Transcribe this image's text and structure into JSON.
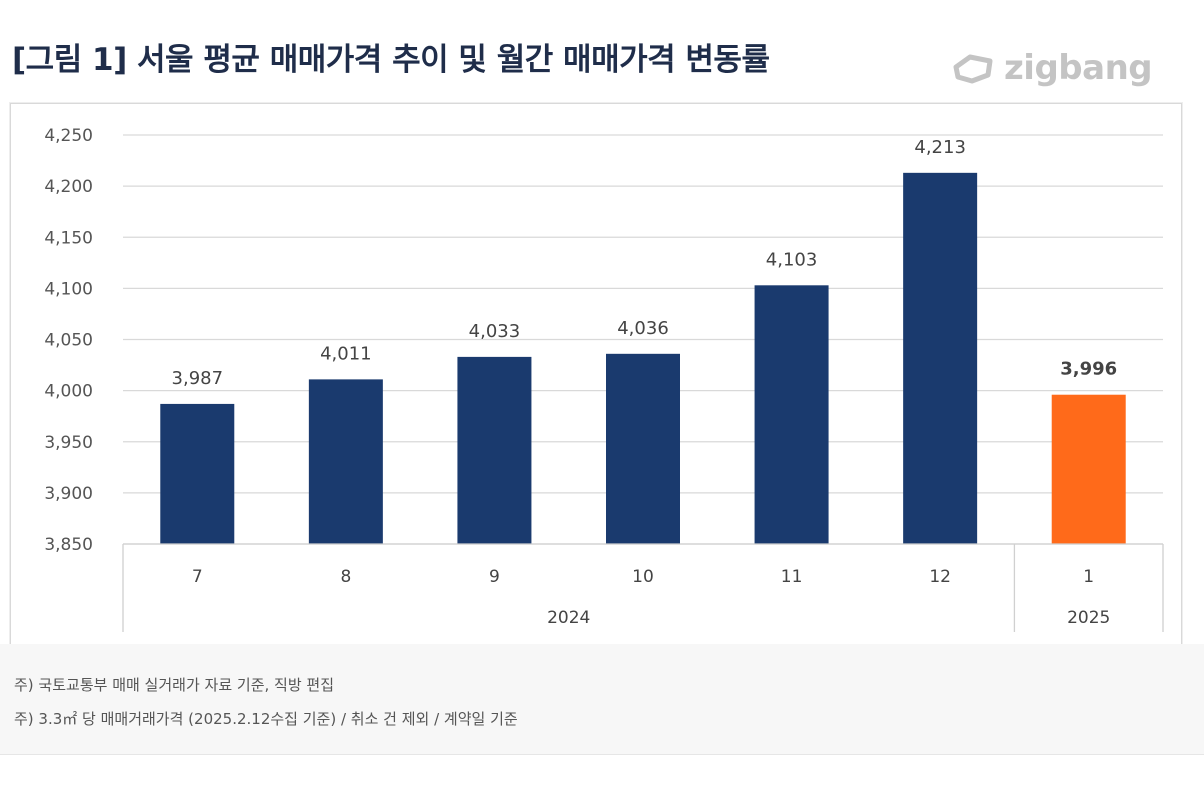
{
  "header": {
    "title": "[그림 1] 서울 평균 매매가격 추이 및 월간 매매가격 변동률",
    "logo_text": "zigbang"
  },
  "notes": [
    "주) 국토교통부 매매 실거래가 자료 기준, 직방 편집",
    "주) 3.3㎡ 당 매매거래가격 (2025.2.12수집 기준) / 취소 건 제외 / 계약일 기준"
  ],
  "colors": {
    "bar_2024": "#1a3a6e",
    "bar_2025": "#ff6a1a",
    "logo": "#c4c4c4",
    "grid": "#d9d9d9"
  },
  "chart_data": {
    "type": "bar",
    "title": "",
    "xlabel": "",
    "ylabel": "",
    "ylim": [
      3850,
      4250
    ],
    "y_ticks": [
      "3,850",
      "3,900",
      "3,950",
      "4,000",
      "4,050",
      "4,100",
      "4,150",
      "4,200",
      "4,250"
    ],
    "y_tick_values": [
      3850,
      3900,
      3950,
      4000,
      4050,
      4100,
      4150,
      4200,
      4250
    ],
    "grid": true,
    "categories": [
      "7",
      "8",
      "9",
      "10",
      "11",
      "12",
      "1"
    ],
    "values": [
      3987,
      4011,
      4033,
      4036,
      4103,
      4213,
      3996
    ],
    "data_labels": [
      "3,987",
      "4,011",
      "4,033",
      "4,036",
      "4,103",
      "4,213",
      "3,996"
    ],
    "year_groups": [
      {
        "label": "2024",
        "start": 0,
        "end": 5
      },
      {
        "label": "2025",
        "start": 6,
        "end": 6
      }
    ],
    "highlight_index": 6
  }
}
